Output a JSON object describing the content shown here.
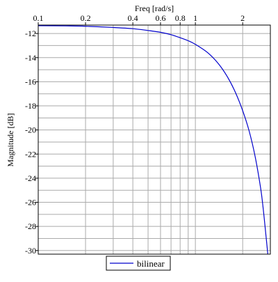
{
  "chart_data": {
    "type": "line",
    "xlabel": "Freq [rad/s]",
    "ylabel": "Magnitude [dB]",
    "x_scale": "log",
    "x_axis_position": "top",
    "xlim": [
      0.1,
      3.0
    ],
    "ylim": [
      -30.3,
      -11.3
    ],
    "x_ticks": [
      {
        "value": 0.1,
        "label": "0.1"
      },
      {
        "value": 0.2,
        "label": "0.2"
      },
      {
        "value": 0.4,
        "label": "0.4"
      },
      {
        "value": 0.6,
        "label": "0.6"
      },
      {
        "value": 0.8,
        "label": "0.8"
      },
      {
        "value": 1,
        "label": "1"
      },
      {
        "value": 2,
        "label": "2"
      }
    ],
    "x_minor_gridlines": [
      0.3,
      0.5,
      0.7,
      0.9,
      3
    ],
    "y_ticks": [
      {
        "value": -12,
        "label": "-12"
      },
      {
        "value": -14,
        "label": "-14"
      },
      {
        "value": -16,
        "label": "-16"
      },
      {
        "value": -18,
        "label": "-18"
      },
      {
        "value": -20,
        "label": "-20"
      },
      {
        "value": -22,
        "label": "-22"
      },
      {
        "value": -24,
        "label": "-24"
      },
      {
        "value": -26,
        "label": "-26"
      },
      {
        "value": -28,
        "label": "-28"
      },
      {
        "value": -30,
        "label": "-30"
      }
    ],
    "y_minor_step": 1,
    "grid": true,
    "legend_position": "bottom",
    "series": [
      {
        "name": "bilinear",
        "color": "#0000cc",
        "x": [
          0.1,
          0.15,
          0.2,
          0.3,
          0.4,
          0.5,
          0.6,
          0.7,
          0.8,
          0.9,
          1.0,
          1.2,
          1.4,
          1.6,
          1.8,
          2.0,
          2.2,
          2.4,
          2.6,
          2.7,
          2.8,
          2.85,
          2.9
        ],
        "y": [
          -11.35,
          -11.37,
          -11.4,
          -11.5,
          -11.6,
          -11.75,
          -11.9,
          -12.1,
          -12.35,
          -12.6,
          -12.9,
          -13.6,
          -14.5,
          -15.6,
          -16.9,
          -18.4,
          -20.1,
          -22.2,
          -24.8,
          -26.5,
          -28.5,
          -29.5,
          -30.5
        ]
      }
    ]
  }
}
